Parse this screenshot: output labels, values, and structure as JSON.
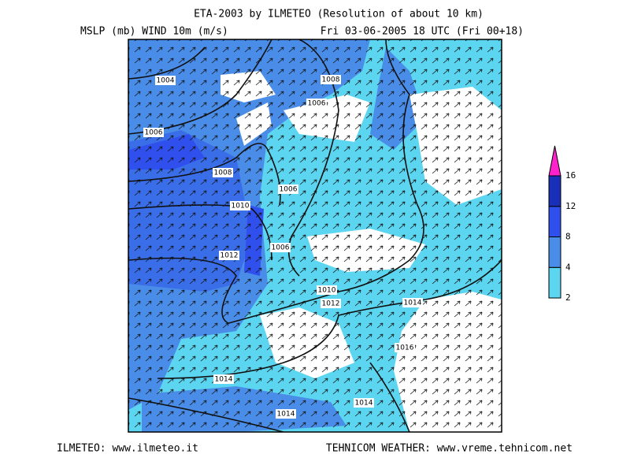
{
  "header": {
    "title": "ETA-2003 by ILMETEO (Resolution of about 10 km)",
    "left": "MSLP (mb)  WIND 10m (m/s)",
    "right": "Fri 03-06-2005 18 UTC (Fri 00+18)"
  },
  "map": {
    "isobar_labels": [
      1004,
      1006,
      1008,
      1010,
      1012,
      1006,
      1006,
      1008,
      1006,
      1010,
      1012,
      1014,
      1016,
      1014,
      1014,
      1014
    ]
  },
  "legend": {
    "levels": [
      2,
      4,
      8,
      12,
      16
    ],
    "colors": [
      "#5cd6f0",
      "#4a8de8",
      "#3050ee",
      "#1a2fb8"
    ],
    "over_color": "#ff22cc"
  },
  "footer": {
    "left": "ILMETEO: www.ilmeteo.it",
    "right": "TEHNICOM WEATHER: www.vreme.tehnicom.net"
  }
}
